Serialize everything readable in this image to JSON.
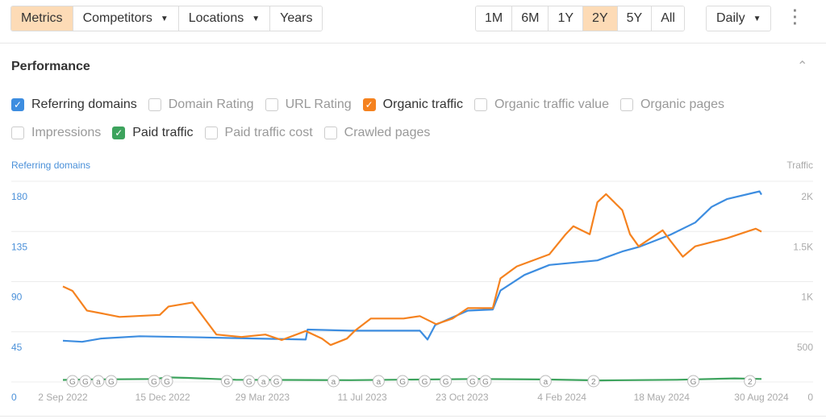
{
  "toolbar": {
    "tabs": [
      {
        "label": "Metrics",
        "active": true
      },
      {
        "label": "Competitors",
        "dropdown": true
      },
      {
        "label": "Locations",
        "dropdown": true
      },
      {
        "label": "Years"
      }
    ],
    "ranges": [
      {
        "label": "1M"
      },
      {
        "label": "6M"
      },
      {
        "label": "1Y"
      },
      {
        "label": "2Y",
        "active": true
      },
      {
        "label": "5Y"
      },
      {
        "label": "All"
      }
    ],
    "interval": "Daily"
  },
  "section": {
    "title": "Performance"
  },
  "metrics_row1": [
    {
      "label": "Referring domains",
      "checked": true,
      "color": "#3d8de0"
    },
    {
      "label": "Domain Rating",
      "checked": false
    },
    {
      "label": "URL Rating",
      "checked": false
    },
    {
      "label": "Organic traffic",
      "checked": true,
      "color": "#f5821f"
    },
    {
      "label": "Organic traffic value",
      "checked": false
    },
    {
      "label": "Organic pages",
      "checked": false
    }
  ],
  "metrics_row2": [
    {
      "label": "Impressions",
      "checked": false
    },
    {
      "label": "Paid traffic",
      "checked": true,
      "color": "#3da35d"
    },
    {
      "label": "Paid traffic cost",
      "checked": false
    },
    {
      "label": "Crawled pages",
      "checked": false
    }
  ],
  "chart_data": {
    "type": "line",
    "left_axis": {
      "title": "Referring domains",
      "ticks": [
        "0",
        "45",
        "90",
        "135",
        "180"
      ],
      "range": [
        0,
        180
      ],
      "color": "#4a90d9"
    },
    "right_axis": {
      "title": "Traffic",
      "ticks": [
        "0",
        "500",
        "1K",
        "1.5K",
        "2K"
      ],
      "range": [
        0,
        2000
      ],
      "color": "#aaaaaa"
    },
    "x_range_days": [
      0,
      728
    ],
    "x_ticks": [
      {
        "day": 0,
        "label": "2 Sep 2022"
      },
      {
        "day": 104,
        "label": "15 Dec 2022"
      },
      {
        "day": 208,
        "label": "29 Mar 2023"
      },
      {
        "day": 312,
        "label": "11 Jul 2023"
      },
      {
        "day": 416,
        "label": "23 Oct 2023"
      },
      {
        "day": 520,
        "label": "4 Feb 2024"
      },
      {
        "day": 624,
        "label": "18 May 2024"
      },
      {
        "day": 728,
        "label": "30 Aug 2024"
      }
    ],
    "grid": true,
    "series": [
      {
        "name": "Referring domains",
        "axis": "left",
        "color": "#3d8de0",
        "points": [
          [
            0,
            37
          ],
          [
            20,
            36
          ],
          [
            40,
            39
          ],
          [
            80,
            41
          ],
          [
            144,
            40
          ],
          [
            200,
            39
          ],
          [
            253,
            38
          ],
          [
            255,
            47
          ],
          [
            300,
            46
          ],
          [
            372,
            46
          ],
          [
            380,
            38
          ],
          [
            388,
            51
          ],
          [
            422,
            64
          ],
          [
            448,
            65
          ],
          [
            456,
            82
          ],
          [
            481,
            96
          ],
          [
            507,
            105
          ],
          [
            557,
            109
          ],
          [
            583,
            117
          ],
          [
            600,
            121
          ],
          [
            633,
            132
          ],
          [
            659,
            143
          ],
          [
            676,
            157
          ],
          [
            692,
            164
          ],
          [
            726,
            171
          ],
          [
            728,
            168
          ]
        ]
      },
      {
        "name": "Organic traffic",
        "axis": "right",
        "color": "#f5821f",
        "points": [
          [
            0,
            952
          ],
          [
            10,
            908
          ],
          [
            25,
            712
          ],
          [
            42,
            680
          ],
          [
            59,
            648
          ],
          [
            101,
            668
          ],
          [
            110,
            752
          ],
          [
            135,
            792
          ],
          [
            160,
            472
          ],
          [
            186,
            448
          ],
          [
            211,
            472
          ],
          [
            228,
            418
          ],
          [
            253,
            508
          ],
          [
            270,
            432
          ],
          [
            279,
            368
          ],
          [
            296,
            432
          ],
          [
            304,
            508
          ],
          [
            321,
            632
          ],
          [
            355,
            632
          ],
          [
            372,
            656
          ],
          [
            389,
            576
          ],
          [
            406,
            632
          ],
          [
            422,
            736
          ],
          [
            448,
            736
          ],
          [
            456,
            1032
          ],
          [
            473,
            1152
          ],
          [
            507,
            1272
          ],
          [
            524,
            1472
          ],
          [
            532,
            1552
          ],
          [
            549,
            1472
          ],
          [
            557,
            1792
          ],
          [
            566,
            1872
          ],
          [
            583,
            1712
          ],
          [
            591,
            1472
          ],
          [
            600,
            1352
          ],
          [
            625,
            1512
          ],
          [
            633,
            1408
          ],
          [
            646,
            1248
          ],
          [
            659,
            1352
          ],
          [
            692,
            1432
          ],
          [
            722,
            1528
          ],
          [
            728,
            1498
          ]
        ]
      },
      {
        "name": "Paid traffic",
        "axis": "right",
        "color": "#3da35d",
        "points": [
          [
            0,
            20
          ],
          [
            30,
            25
          ],
          [
            95,
            30
          ],
          [
            110,
            45
          ],
          [
            130,
            40
          ],
          [
            180,
            22
          ],
          [
            300,
            18
          ],
          [
            430,
            30
          ],
          [
            500,
            25
          ],
          [
            560,
            15
          ],
          [
            640,
            22
          ],
          [
            700,
            35
          ],
          [
            728,
            30
          ]
        ]
      }
    ],
    "annotations": [
      {
        "day": 10,
        "label": "G"
      },
      {
        "day": 17,
        "label": "G"
      },
      {
        "day": 30,
        "label": "a"
      },
      {
        "day": 46,
        "label": "G"
      },
      {
        "day": 95,
        "label": "G"
      },
      {
        "day": 102,
        "label": "G"
      },
      {
        "day": 171,
        "label": "G"
      },
      {
        "day": 194,
        "label": "G"
      },
      {
        "day": 209,
        "label": "a"
      },
      {
        "day": 222,
        "label": "G"
      },
      {
        "day": 282,
        "label": "a"
      },
      {
        "day": 329,
        "label": "a"
      },
      {
        "day": 354,
        "label": "G"
      },
      {
        "day": 377,
        "label": "G"
      },
      {
        "day": 399,
        "label": "G"
      },
      {
        "day": 427,
        "label": "G"
      },
      {
        "day": 431,
        "label": "G"
      },
      {
        "day": 503,
        "label": "a"
      },
      {
        "day": 553,
        "label": "2"
      },
      {
        "day": 657,
        "label": "G"
      },
      {
        "day": 716,
        "label": "2"
      }
    ]
  }
}
